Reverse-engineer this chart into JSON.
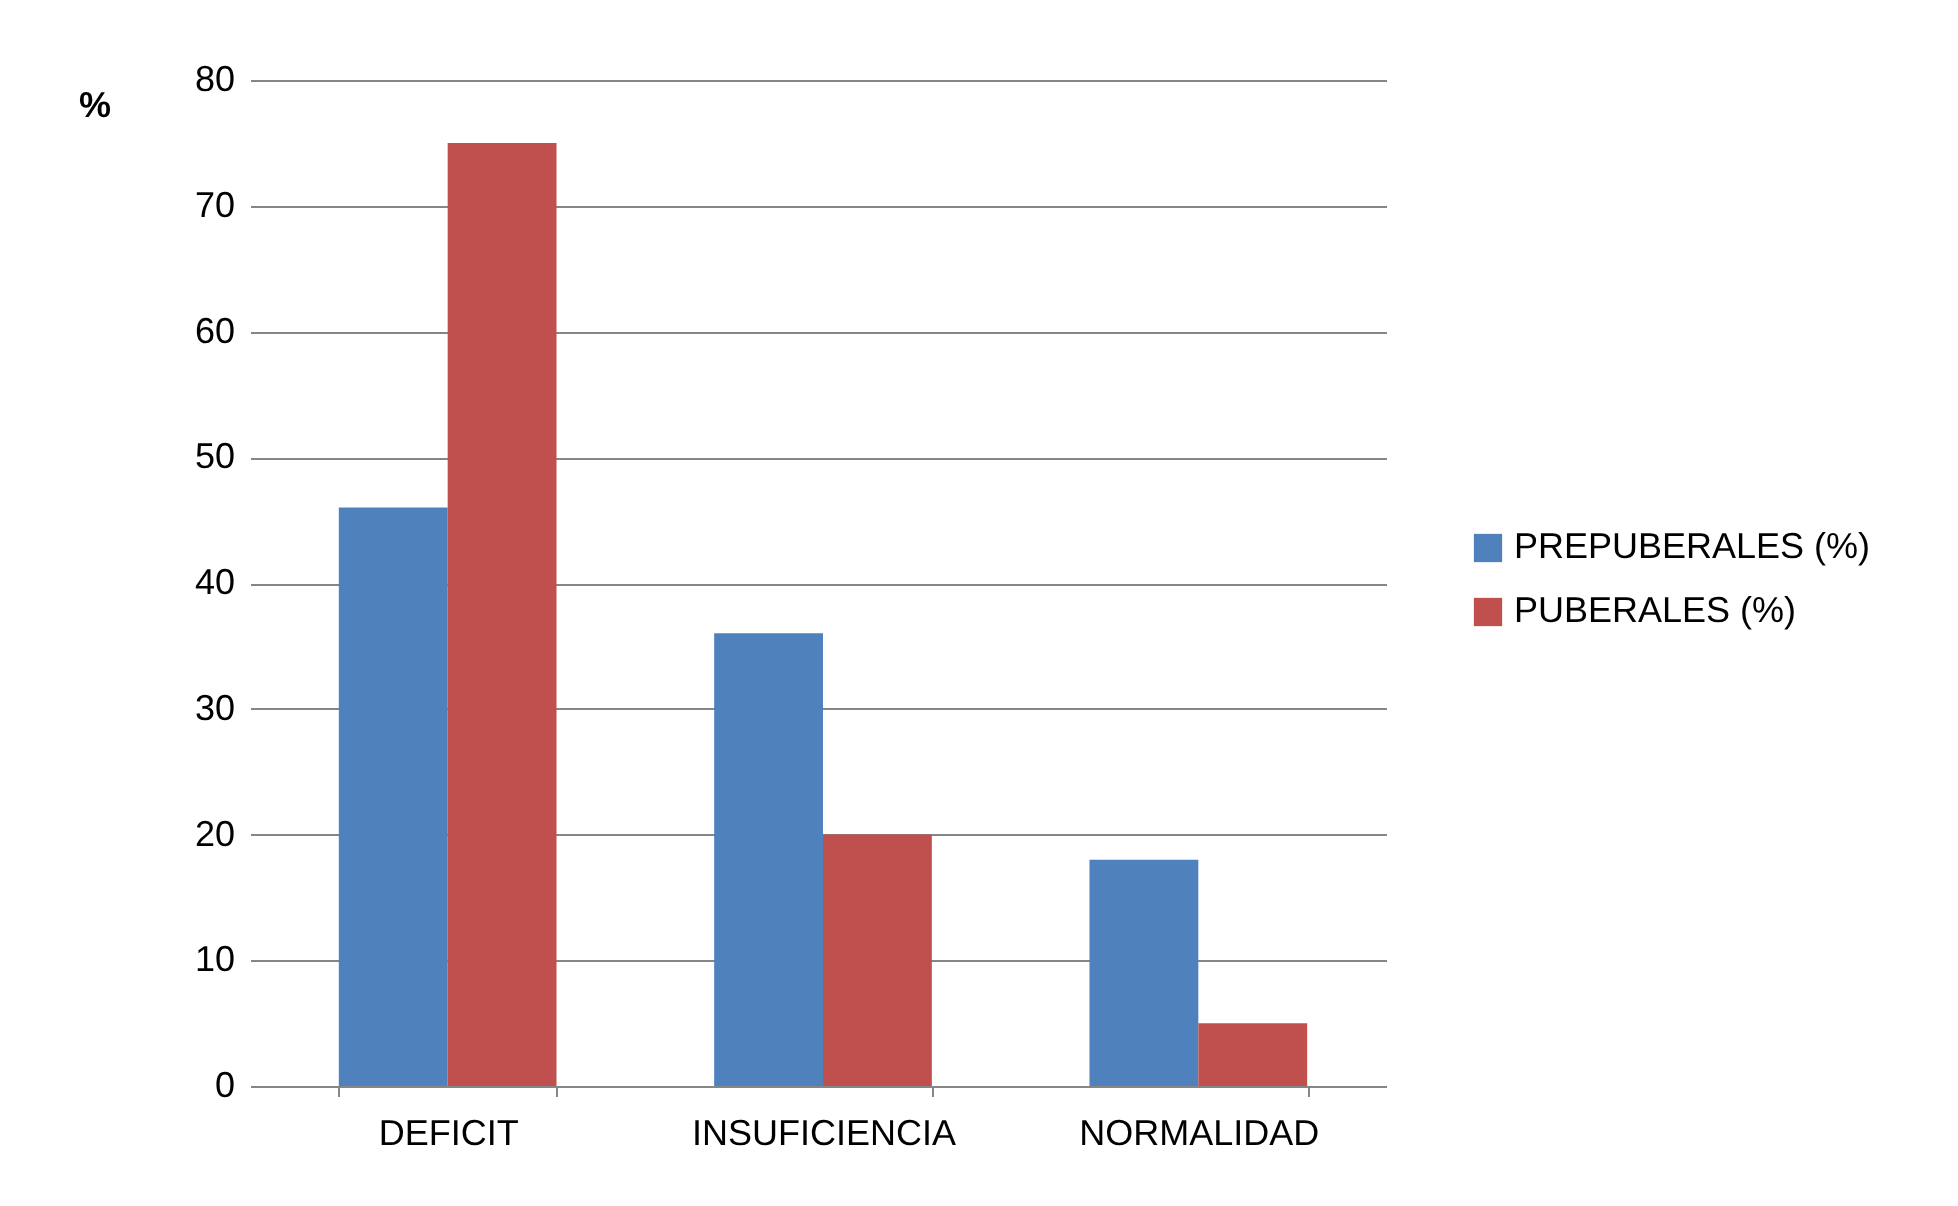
{
  "chart_data": {
    "type": "bar",
    "ylabel": "%",
    "categories": [
      "DEFICIT",
      "INSUFICIENCIA",
      "NORMALIDAD"
    ],
    "series": [
      {
        "name": "PREPUBERALES (%)",
        "color": "#4f81bd",
        "values": [
          46,
          36,
          18
        ]
      },
      {
        "name": "PUBERALES (%)",
        "color": "#c0504d",
        "values": [
          75,
          20,
          5
        ]
      }
    ],
    "ylim": [
      0,
      80
    ],
    "yticks": [
      0,
      10,
      20,
      30,
      40,
      50,
      60,
      70,
      80
    ],
    "grid": "y",
    "legend": "right"
  }
}
